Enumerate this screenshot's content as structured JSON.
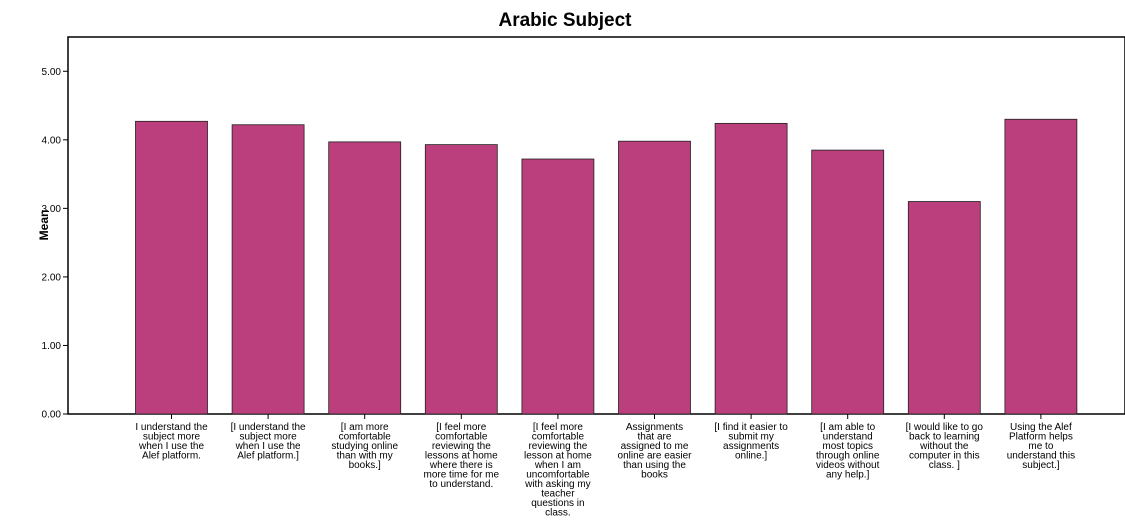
{
  "chart_data": {
    "type": "bar",
    "title": "Arabic Subject",
    "xlabel": "",
    "ylabel": "Mean",
    "ylim": [
      0,
      5.5
    ],
    "yticks": [
      "0.00",
      "1.00",
      "2.00",
      "3.00",
      "4.00",
      "5.00"
    ],
    "grid": false,
    "bar_color": "#bb3f7c",
    "categories": [
      [
        "I understand the",
        "subject more",
        "when I use the",
        "Alef platform."
      ],
      [
        "[I understand the",
        "subject more",
        "when I use the",
        "Alef platform.]"
      ],
      [
        "[I am more",
        "comfortable",
        "studying online",
        "than with my",
        "books.]"
      ],
      [
        "[I feel more",
        "comfortable",
        "reviewing the",
        "lessons at home",
        "where there is",
        "more time for me",
        "to understand."
      ],
      [
        "[I feel more",
        "comfortable",
        "reviewing the",
        "lesson at home",
        "when I am",
        "uncomfortable",
        "with asking my",
        "teacher",
        "questions in",
        "class."
      ],
      [
        "Assignments",
        "that are",
        "assigned to me",
        "online are easier",
        "than using the",
        "books"
      ],
      [
        "[I find it easier to",
        "submit my",
        "assignments",
        "online.]"
      ],
      [
        "[I am able to",
        "understand",
        "most  topics",
        "through online",
        "videos  without",
        "any help.]"
      ],
      [
        "[I would like to go",
        "back to learning",
        "without the",
        "computer in this",
        "class. ]"
      ],
      [
        "Using the Alef",
        "Platform helps",
        "me to",
        "understand this",
        "subject.]"
      ]
    ],
    "values": [
      4.27,
      4.22,
      3.97,
      3.93,
      3.72,
      3.98,
      4.24,
      3.85,
      3.1,
      4.3
    ]
  }
}
